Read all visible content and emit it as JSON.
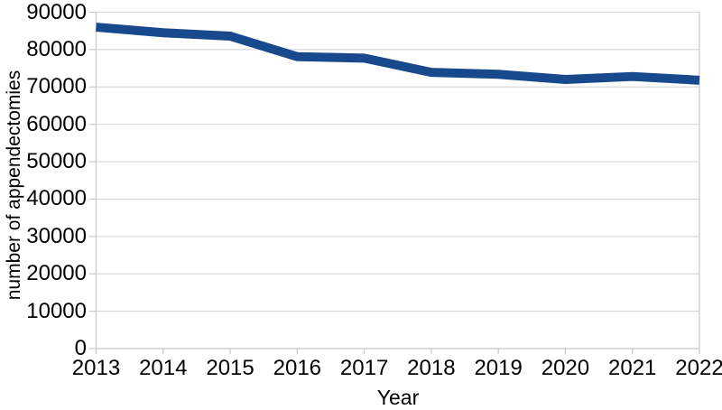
{
  "chart_data": {
    "type": "line",
    "title": "",
    "xlabel": "Year",
    "ylabel": "number of appendectomies",
    "categories": [
      "2013",
      "2014",
      "2015",
      "2016",
      "2017",
      "2018",
      "2019",
      "2020",
      "2021",
      "2022"
    ],
    "series": [
      {
        "name": "number of appendectomies",
        "values": [
          86000,
          84500,
          83600,
          78100,
          77700,
          73900,
          73400,
          72000,
          72800,
          71800
        ]
      }
    ],
    "ylim": [
      0,
      90000
    ],
    "ytick_step": 10000,
    "ytick_labels": [
      "0",
      "10000",
      "20000",
      "30000",
      "40000",
      "50000",
      "60000",
      "70000",
      "80000",
      "90000"
    ],
    "grid": "horizontal",
    "legend": "none",
    "colors": {
      "line": "#17498c",
      "gridline": "#d9d9d9",
      "axis": "#c8c8c8",
      "text": "#000000",
      "background": "#ffffff"
    }
  }
}
